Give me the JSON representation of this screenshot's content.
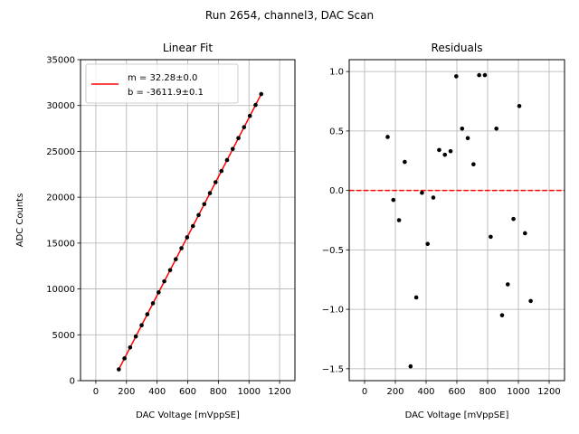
{
  "figure": {
    "title": "Run 2654, channel3, DAC Scan"
  },
  "chart_data": [
    {
      "type": "scatter",
      "title": "Linear Fit",
      "xlabel": "DAC Voltage [mVppSE]",
      "ylabel": "ADC Counts",
      "xlim": [
        -100,
        1300
      ],
      "ylim": [
        0,
        35000
      ],
      "xticks": [
        0,
        200,
        400,
        600,
        800,
        1000,
        1200
      ],
      "xtick_labels": [
        "0",
        "200",
        "400",
        "600",
        "800",
        "1000",
        "1200"
      ],
      "yticks": [
        0,
        5000,
        10000,
        15000,
        20000,
        25000,
        30000,
        35000
      ],
      "ytick_labels": [
        "0",
        "5000",
        "10000",
        "15000",
        "20000",
        "25000",
        "30000",
        "35000"
      ],
      "grid": true,
      "legend": {
        "location": "upper-left",
        "label_line1": "m = 32.28±0.0",
        "label_line2": "b = -3611.9±0.1"
      },
      "fit": {
        "slope": 32.28,
        "intercept": -3611.9,
        "color": "#ff0000"
      },
      "point_color": "#000000",
      "x": [
        150,
        187,
        224,
        261,
        299,
        336,
        373,
        410,
        447,
        485,
        522,
        559,
        596,
        634,
        671,
        708,
        745,
        782,
        820,
        857,
        894,
        931,
        968,
        1006,
        1043,
        1080
      ],
      "y": [
        1230,
        2430,
        3620,
        4820,
        6040,
        7240,
        8440,
        9630,
        10830,
        12050,
        13240,
        14440,
        15630,
        16860,
        18060,
        19250,
        20450,
        21640,
        22860,
        24060,
        25260,
        26450,
        27640,
        28870,
        30060,
        31250
      ]
    },
    {
      "type": "scatter",
      "title": "Residuals",
      "xlabel": "DAC Voltage [mVppSE]",
      "xlim": [
        -100,
        1300
      ],
      "ylim": [
        -1.6,
        1.1
      ],
      "xticks": [
        0,
        200,
        400,
        600,
        800,
        1000,
        1200
      ],
      "xtick_labels": [
        "0",
        "200",
        "400",
        "600",
        "800",
        "1000",
        "1200"
      ],
      "yticks": [
        -1.5,
        -1.0,
        -0.5,
        0.0,
        0.5,
        1.0
      ],
      "ytick_labels": [
        "−1.5",
        "−1.0",
        "−0.5",
        "0.0",
        "0.5",
        "1.0"
      ],
      "grid": true,
      "reference_line": {
        "y": 0,
        "color": "#ff0000",
        "style": "dashed"
      },
      "point_color": "#000000",
      "x": [
        150,
        187,
        224,
        261,
        299,
        336,
        373,
        410,
        447,
        485,
        522,
        559,
        596,
        634,
        671,
        708,
        745,
        782,
        820,
        857,
        894,
        931,
        968,
        1006,
        1043,
        1080
      ],
      "y": [
        0.45,
        -0.08,
        -0.25,
        0.24,
        -1.48,
        -0.9,
        -0.02,
        -0.45,
        -0.06,
        0.34,
        0.3,
        0.33,
        0.96,
        0.52,
        0.44,
        0.22,
        0.97,
        0.97,
        -0.39,
        0.52,
        -1.05,
        -0.79,
        -0.24,
        0.71,
        -0.36,
        -0.93
      ]
    }
  ]
}
